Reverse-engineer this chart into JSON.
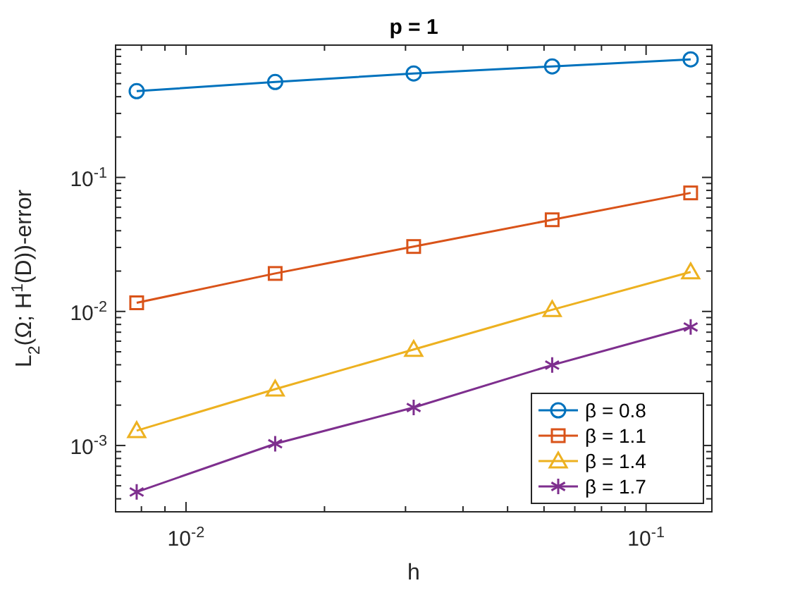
{
  "chart_data": {
    "type": "line",
    "title": "p = 1",
    "xlabel": "h",
    "ylabel": "L$_{2}$(Ω; H$^{1}$(D))-error",
    "log": "xy",
    "grid": false,
    "legend": "bottom right",
    "line_style": "solid",
    "x": [
      0.0078125,
      0.015625,
      0.03125,
      0.0625,
      0.125
    ],
    "xlim": [
      0.00703,
      0.139
    ],
    "xticks": [
      {
        "value": 0.008,
        "label": null
      },
      {
        "value": 0.009,
        "label": null
      },
      {
        "value": 0.01,
        "label": "10$^{-2}$"
      },
      {
        "value": 0.02,
        "label": null
      },
      {
        "value": 0.03,
        "label": null
      },
      {
        "value": 0.04,
        "label": null
      },
      {
        "value": 0.05,
        "label": null
      },
      {
        "value": 0.06,
        "label": null
      },
      {
        "value": 0.07,
        "label": null
      },
      {
        "value": 0.08,
        "label": null
      },
      {
        "value": 0.09,
        "label": null
      },
      {
        "value": 0.1,
        "label": "10$^{-1}$"
      }
    ],
    "ylim": [
      0.00032,
      0.97
    ],
    "yticks": [
      {
        "value": 0.0004,
        "label": null
      },
      {
        "value": 0.0005,
        "label": null
      },
      {
        "value": 0.0006,
        "label": null
      },
      {
        "value": 0.0007,
        "label": null
      },
      {
        "value": 0.0008,
        "label": null
      },
      {
        "value": 0.0009,
        "label": null
      },
      {
        "value": 0.001,
        "label": "10$^{-3}$"
      },
      {
        "value": 0.002,
        "label": null
      },
      {
        "value": 0.003,
        "label": null
      },
      {
        "value": 0.004,
        "label": null
      },
      {
        "value": 0.005,
        "label": null
      },
      {
        "value": 0.006,
        "label": null
      },
      {
        "value": 0.007,
        "label": null
      },
      {
        "value": 0.008,
        "label": null
      },
      {
        "value": 0.009,
        "label": null
      },
      {
        "value": 0.01,
        "label": "10$^{-2}$"
      },
      {
        "value": 0.02,
        "label": null
      },
      {
        "value": 0.03,
        "label": null
      },
      {
        "value": 0.04,
        "label": null
      },
      {
        "value": 0.05,
        "label": null
      },
      {
        "value": 0.06,
        "label": null
      },
      {
        "value": 0.07,
        "label": null
      },
      {
        "value": 0.08,
        "label": null
      },
      {
        "value": 0.09,
        "label": null
      },
      {
        "value": 0.1,
        "label": "10$^{-1}$"
      },
      {
        "value": 0.2,
        "label": null
      },
      {
        "value": 0.3,
        "label": null
      },
      {
        "value": 0.4,
        "label": null
      },
      {
        "value": 0.5,
        "label": null
      },
      {
        "value": 0.6,
        "label": null
      },
      {
        "value": 0.7,
        "label": null
      },
      {
        "value": 0.8,
        "label": null
      },
      {
        "value": 0.9,
        "label": null
      }
    ],
    "series": [
      {
        "name": "β = 0.8",
        "color": "#0072bd",
        "marker": "circle",
        "values": [
          0.44,
          0.515,
          0.596,
          0.673,
          0.76
        ]
      },
      {
        "name": "β = 1.1",
        "color": "#d95319",
        "marker": "square",
        "values": [
          0.0116,
          0.0192,
          0.0305,
          0.0483,
          0.0766
        ]
      },
      {
        "name": "β = 1.4",
        "color": "#edb120",
        "marker": "triangle",
        "values": [
          0.00129,
          0.00263,
          0.0052,
          0.0103,
          0.0197
        ]
      },
      {
        "name": "β = 1.7",
        "color": "#7e2f8e",
        "marker": "cross",
        "values": [
          0.00045,
          0.00103,
          0.00192,
          0.00398,
          0.00766
        ]
      }
    ]
  }
}
